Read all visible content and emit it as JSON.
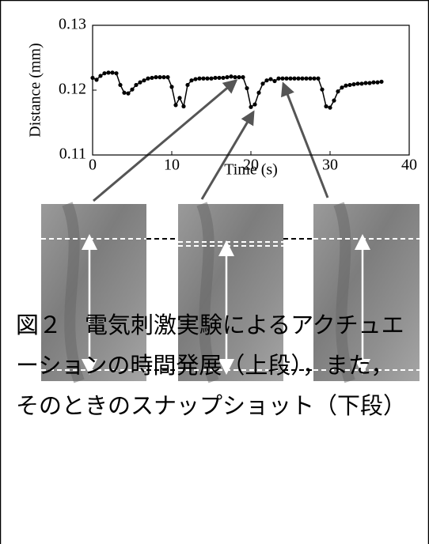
{
  "chart_data": {
    "type": "line",
    "xlabel": "Time (s)",
    "ylabel": "Distance (mm)",
    "color": "#000000",
    "x": [
      0,
      0.5,
      1,
      1.5,
      2,
      2.5,
      3,
      3.5,
      4,
      4.5,
      5,
      5.5,
      6,
      6.5,
      7,
      7.5,
      8,
      8.5,
      9,
      9.5,
      10,
      10.5,
      11,
      11.5,
      12,
      12.5,
      13,
      13.5,
      14,
      14.5,
      15,
      15.5,
      16,
      16.5,
      17,
      17.5,
      18,
      18.5,
      19,
      19.5,
      20,
      20.5,
      21,
      21.5,
      22,
      22.5,
      23,
      23.5,
      24,
      24.5,
      25,
      25.5,
      26,
      26.5,
      27,
      27.5,
      28,
      28.5,
      29,
      29.5,
      30,
      30.5,
      31,
      31.5,
      32,
      32.5,
      33,
      33.5,
      34,
      34.5,
      35,
      35.5,
      36,
      36.5
    ],
    "values": [
      0.1219,
      0.1216,
      0.1222,
      0.1226,
      0.1227,
      0.1227,
      0.1226,
      0.1208,
      0.1196,
      0.1195,
      0.1201,
      0.1208,
      0.1212,
      0.1215,
      0.1218,
      0.1219,
      0.122,
      0.122,
      0.122,
      0.122,
      0.1205,
      0.1177,
      0.1188,
      0.1175,
      0.1208,
      0.1215,
      0.1217,
      0.1218,
      0.1218,
      0.1218,
      0.1218,
      0.1219,
      0.1219,
      0.1219,
      0.122,
      0.1221,
      0.122,
      0.122,
      0.122,
      0.1203,
      0.1174,
      0.1178,
      0.1196,
      0.121,
      0.1215,
      0.1217,
      0.1214,
      0.1218,
      0.1218,
      0.1218,
      0.1218,
      0.1218,
      0.1218,
      0.1218,
      0.1218,
      0.1218,
      0.1218,
      0.1218,
      0.1201,
      0.1175,
      0.1173,
      0.1184,
      0.1198,
      0.1204,
      0.1207,
      0.1208,
      0.1209,
      0.121,
      0.121,
      0.1211,
      0.1211,
      0.1212,
      0.1212,
      0.1213
    ],
    "xlim": [
      0,
      40
    ],
    "xticks": [
      0,
      10,
      20,
      30,
      40
    ],
    "ylim": [
      0.11,
      0.13
    ],
    "yticks": [
      0.11,
      0.12,
      0.13
    ]
  },
  "caption": "図２　電気刺激実験によるアクチュエーションの時間発展（上段），また，そのときのスナップショット（下段）"
}
